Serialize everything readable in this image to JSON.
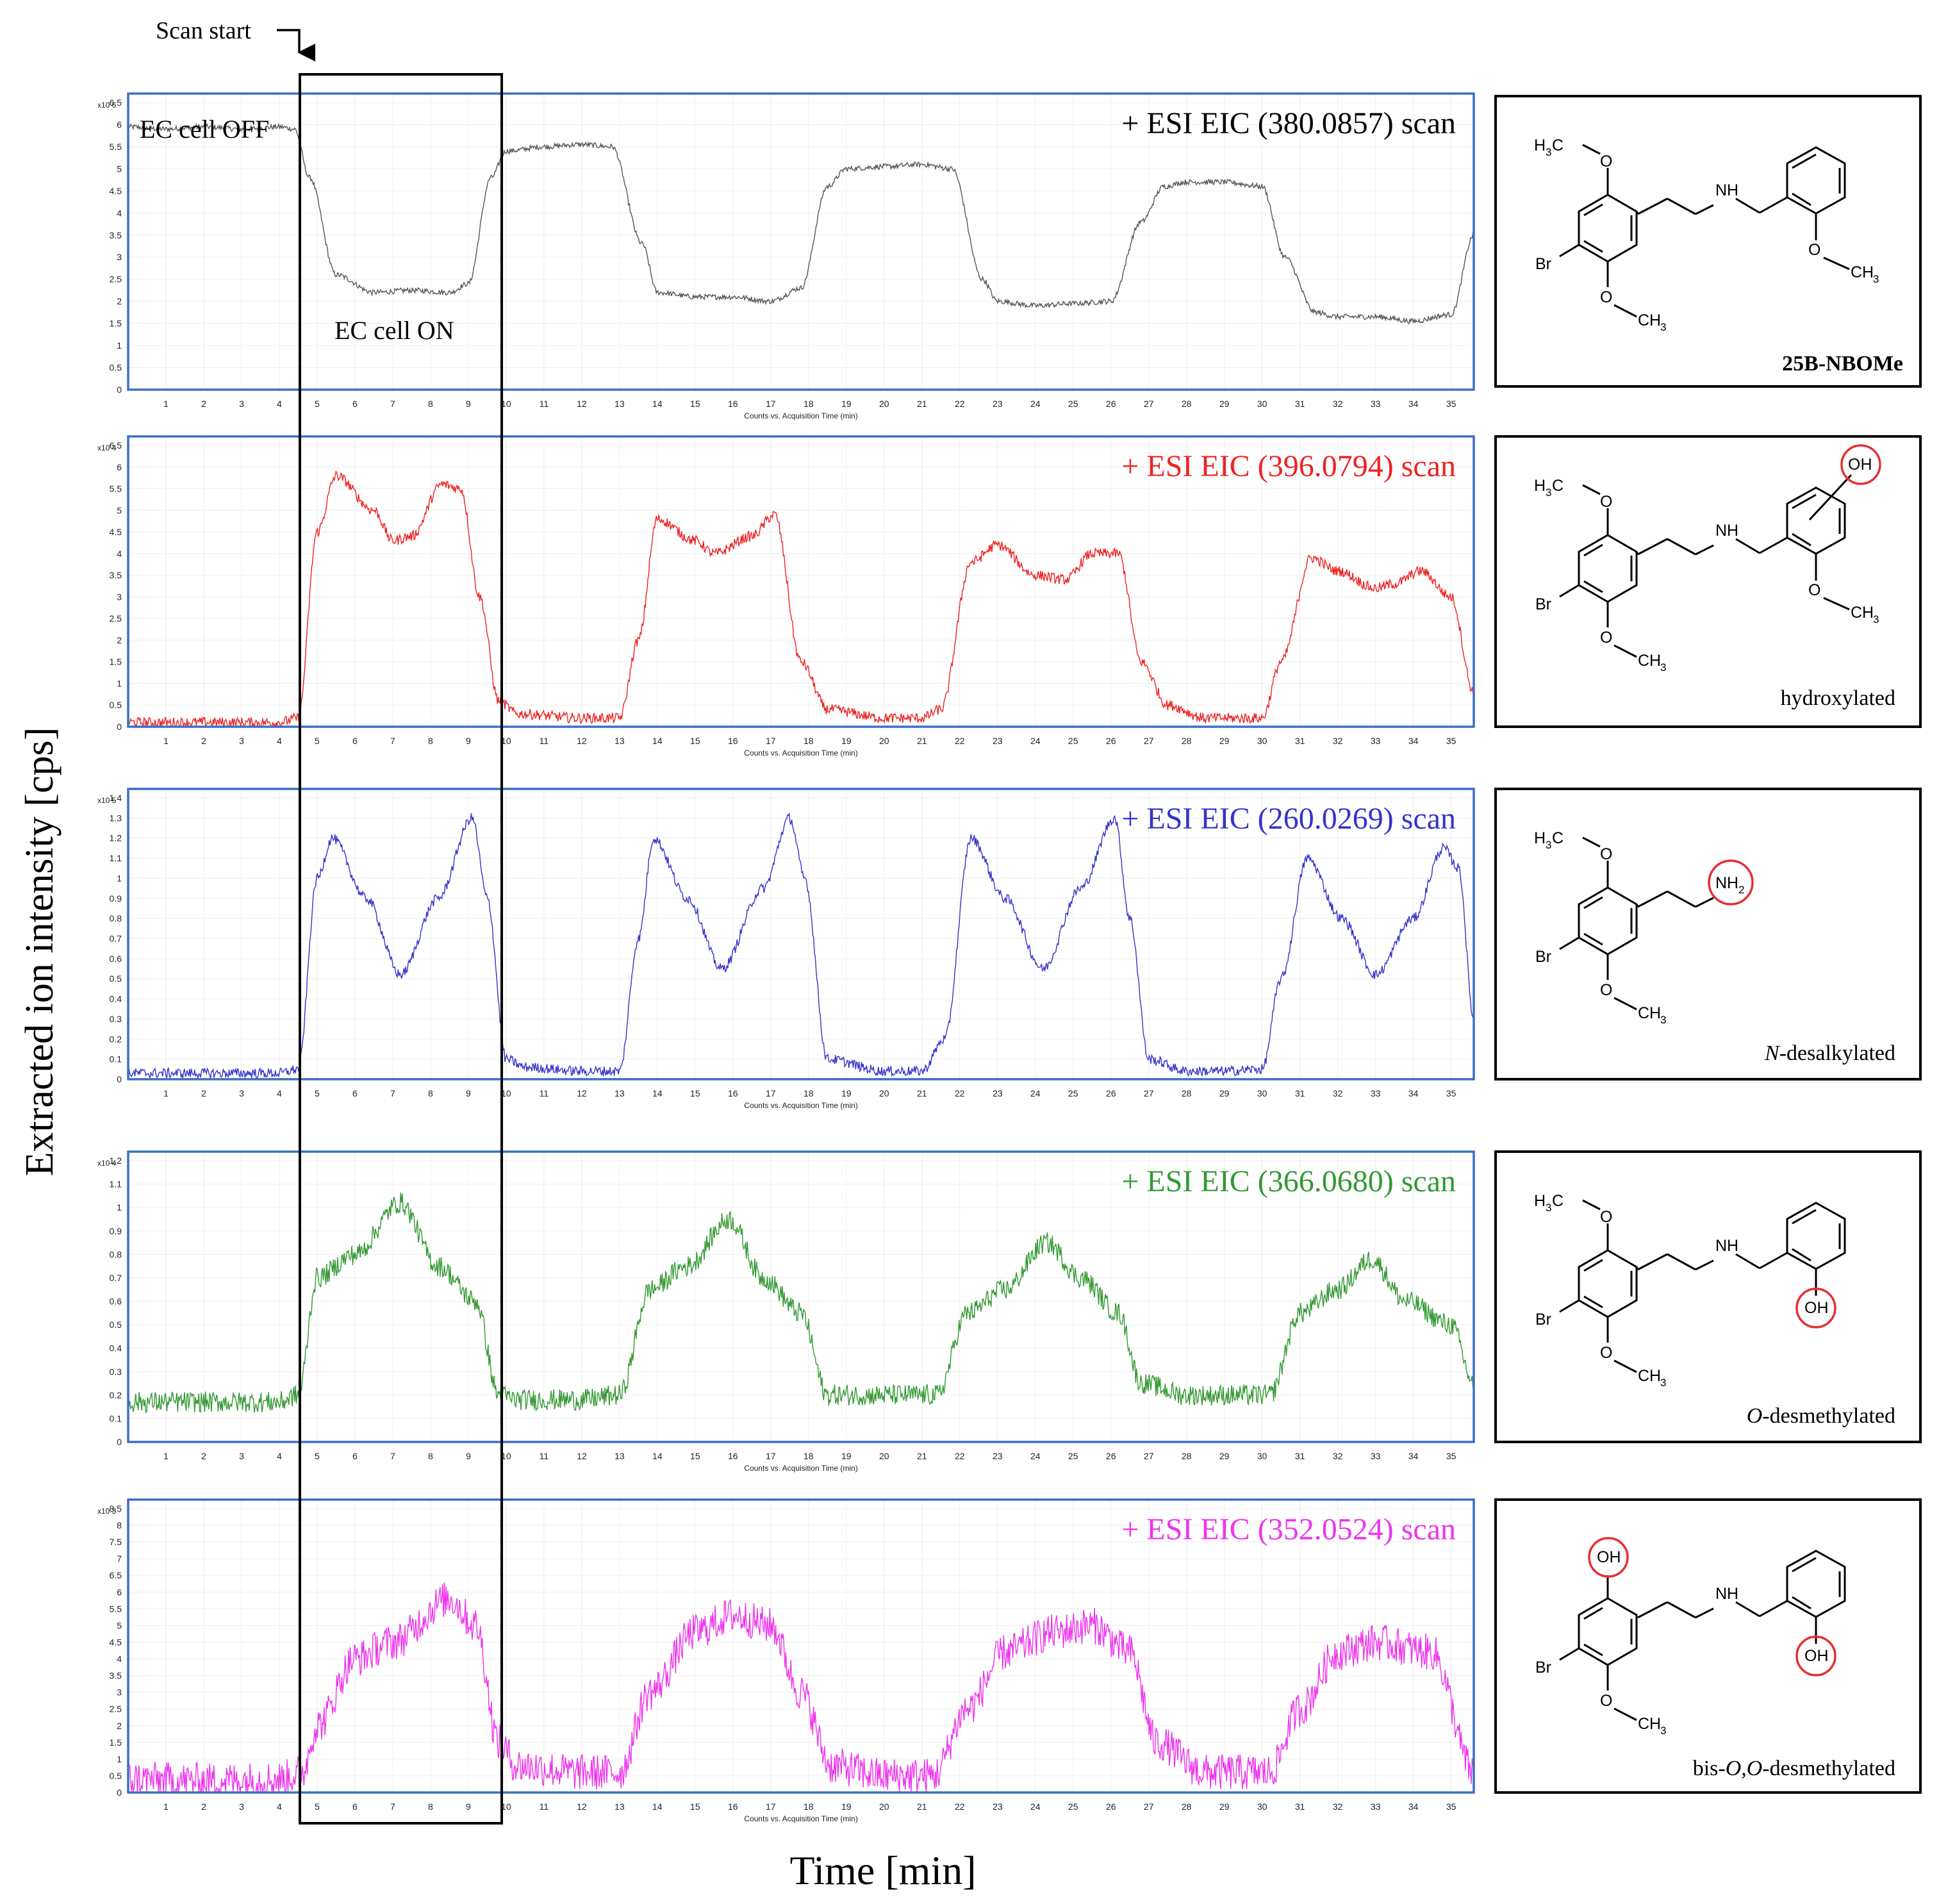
{
  "figure": {
    "y_axis_label": "Extracted ion intensity [cps]",
    "x_axis_label": "Time [min]",
    "scan_start_label": "Scan start",
    "ec_off_label": "EC cell OFF",
    "ec_on_label": "EC cell ON",
    "panel_x_caption": "Counts vs. Acquisition Time (min)"
  },
  "chart_data": [
    {
      "type": "line",
      "title": "+ ESI EIC (380.0857) scan",
      "color": "#555555",
      "exponent_label": "x10 6",
      "xlabel": "Counts vs. Acquisition Time (min)",
      "ylim": [
        0,
        6.5
      ],
      "yticks": [
        "0",
        "0.5",
        "1",
        "1.5",
        "2",
        "2.5",
        "3",
        "3.5",
        "4",
        "4.5",
        "5",
        "5.5",
        "6",
        "6.5"
      ],
      "xticks": [
        "1",
        "2",
        "3",
        "4",
        "5",
        "6",
        "7",
        "8",
        "9",
        "10",
        "11",
        "12",
        "13",
        "14",
        "15",
        "16",
        "17",
        "18",
        "19",
        "20",
        "21",
        "22",
        "23",
        "24",
        "25",
        "26",
        "27",
        "28",
        "29",
        "30",
        "31",
        "32",
        "33",
        "34",
        "35"
      ],
      "noise": 0.06,
      "x": [
        0,
        1,
        2,
        3,
        4,
        4.4,
        4.8,
        5.5,
        6.5,
        7.5,
        8.5,
        9.0,
        9.6,
        10.0,
        11,
        12,
        12.8,
        13.6,
        14,
        15,
        16,
        17,
        17.8,
        18.5,
        19,
        20,
        21,
        21.8,
        22.6,
        23,
        24,
        25,
        26,
        26.8,
        27.4,
        28,
        29,
        30,
        30.6,
        31.4,
        32,
        33,
        34,
        35,
        35.6
      ],
      "y": [
        5.95,
        5.9,
        5.95,
        5.9,
        5.95,
        5.9,
        4.8,
        2.6,
        2.2,
        2.25,
        2.2,
        2.4,
        4.8,
        5.4,
        5.5,
        5.55,
        5.5,
        3.3,
        2.2,
        2.1,
        2.1,
        2.0,
        2.3,
        4.6,
        5.0,
        5.05,
        5.1,
        5.0,
        2.5,
        2.0,
        1.9,
        1.95,
        2.0,
        3.8,
        4.6,
        4.7,
        4.7,
        4.6,
        3.0,
        1.75,
        1.65,
        1.65,
        1.55,
        1.7,
        3.5
      ]
    },
    {
      "type": "line",
      "title": "+ ESI EIC (396.0794) scan",
      "color": "#ee2222",
      "exponent_label": "x10 4",
      "xlabel": "Counts vs. Acquisition Time (min)",
      "ylim": [
        0,
        6.5
      ],
      "yticks": [
        "0",
        "0.5",
        "1",
        "1.5",
        "2",
        "2.5",
        "3",
        "3.5",
        "4",
        "4.5",
        "5",
        "5.5",
        "6",
        "6.5"
      ],
      "xticks": [
        "1",
        "2",
        "3",
        "4",
        "5",
        "6",
        "7",
        "8",
        "9",
        "10",
        "11",
        "12",
        "13",
        "14",
        "15",
        "16",
        "17",
        "18",
        "19",
        "20",
        "21",
        "22",
        "23",
        "24",
        "25",
        "26",
        "27",
        "28",
        "29",
        "30",
        "31",
        "32",
        "33",
        "34",
        "35"
      ],
      "noise": 0.12,
      "x": [
        0,
        2,
        4,
        4.5,
        5.0,
        5.5,
        6.5,
        7.0,
        7.5,
        8.3,
        8.8,
        9.3,
        9.8,
        10.3,
        12,
        13,
        13.5,
        14,
        15,
        15.5,
        16.5,
        17.1,
        17.8,
        18.5,
        20,
        21,
        21.5,
        22.3,
        23,
        24,
        24.8,
        25.5,
        26.2,
        26.8,
        27.5,
        28.5,
        29.5,
        30,
        30.5,
        31.3,
        32,
        33,
        33.5,
        34.2,
        35,
        35.6
      ],
      "y": [
        0.1,
        0.1,
        0.1,
        0.2,
        4.5,
        5.8,
        5.0,
        4.3,
        4.4,
        5.6,
        5.5,
        3.0,
        0.6,
        0.3,
        0.2,
        0.2,
        2.0,
        4.8,
        4.3,
        4.0,
        4.4,
        4.9,
        1.5,
        0.4,
        0.2,
        0.2,
        0.4,
        3.8,
        4.2,
        3.5,
        3.4,
        4.0,
        4.0,
        1.5,
        0.5,
        0.2,
        0.2,
        0.2,
        1.5,
        3.9,
        3.6,
        3.2,
        3.3,
        3.6,
        3.0,
        0.8
      ]
    },
    {
      "type": "line",
      "title": "+ ESI EIC (260.0269) scan",
      "color": "#3333cc",
      "exponent_label": "x10 5",
      "xlabel": "Counts vs. Acquisition Time (min)",
      "ylim": [
        0,
        1.4
      ],
      "yticks": [
        "0",
        "0.1",
        "0.2",
        "0.3",
        "0.4",
        "0.5",
        "0.6",
        "0.7",
        "0.8",
        "0.9",
        "1",
        "1.1",
        "1.2",
        "1.3",
        "1.4"
      ],
      "xticks": [
        "1",
        "2",
        "3",
        "4",
        "5",
        "6",
        "7",
        "8",
        "9",
        "10",
        "11",
        "12",
        "13",
        "14",
        "15",
        "16",
        "17",
        "18",
        "19",
        "20",
        "21",
        "22",
        "23",
        "24",
        "25",
        "26",
        "27",
        "28",
        "29",
        "30",
        "31",
        "32",
        "33",
        "34",
        "35"
      ],
      "noise": 0.025,
      "x": [
        0,
        2,
        4,
        4.5,
        5.0,
        5.4,
        6.3,
        7.2,
        8.2,
        9.1,
        9.5,
        10.0,
        10.5,
        12,
        13,
        13.5,
        13.9,
        14.8,
        15.7,
        16.8,
        17.5,
        17.9,
        18.5,
        20,
        21,
        21.6,
        22.3,
        23.2,
        24.2,
        25.2,
        26.1,
        26.5,
        27,
        28,
        29,
        30,
        30.5,
        31.2,
        32.1,
        33.0,
        34.0,
        34.8,
        35.2,
        35.6
      ],
      "y": [
        0.03,
        0.03,
        0.03,
        0.05,
        1.0,
        1.2,
        0.9,
        0.52,
        0.9,
        1.3,
        0.9,
        0.1,
        0.06,
        0.04,
        0.04,
        0.7,
        1.2,
        0.9,
        0.55,
        0.95,
        1.3,
        1.0,
        0.1,
        0.04,
        0.04,
        0.2,
        1.2,
        0.9,
        0.55,
        0.95,
        1.3,
        0.8,
        0.1,
        0.04,
        0.04,
        0.05,
        0.5,
        1.1,
        0.8,
        0.52,
        0.8,
        1.15,
        1.05,
        0.3
      ]
    },
    {
      "type": "line",
      "title": "+ ESI EIC (366.0680) scan",
      "color": "#339933",
      "exponent_label": "x10 4",
      "xlabel": "Counts vs. Acquisition Time (min)",
      "ylim": [
        0,
        1.2
      ],
      "yticks": [
        "0",
        "0.1",
        "0.2",
        "0.3",
        "0.4",
        "0.5",
        "0.6",
        "0.7",
        "0.8",
        "0.9",
        "1",
        "1.1",
        "1.2"
      ],
      "xticks": [
        "1",
        "2",
        "3",
        "4",
        "5",
        "6",
        "7",
        "8",
        "9",
        "10",
        "11",
        "12",
        "13",
        "14",
        "15",
        "16",
        "17",
        "18",
        "19",
        "20",
        "21",
        "22",
        "23",
        "24",
        "25",
        "26",
        "27",
        "28",
        "29",
        "30",
        "31",
        "32",
        "33",
        "34",
        "35"
      ],
      "noise": 0.045,
      "x": [
        0,
        2,
        4,
        4.5,
        5.0,
        6.0,
        7.2,
        8.2,
        9.2,
        9.8,
        10.3,
        12,
        13.0,
        13.8,
        14.8,
        15.9,
        16.8,
        17.8,
        18.5,
        20,
        21.4,
        22.2,
        23.2,
        24.3,
        25.2,
        26.2,
        26.8,
        28,
        29.5,
        30.2,
        31.0,
        32.0,
        32.9,
        33.8,
        35.0,
        35.6
      ],
      "y": [
        0.17,
        0.17,
        0.17,
        0.2,
        0.7,
        0.8,
        1.02,
        0.75,
        0.6,
        0.2,
        0.18,
        0.18,
        0.2,
        0.65,
        0.75,
        0.95,
        0.7,
        0.55,
        0.2,
        0.2,
        0.2,
        0.55,
        0.65,
        0.85,
        0.7,
        0.55,
        0.25,
        0.2,
        0.2,
        0.2,
        0.55,
        0.65,
        0.78,
        0.6,
        0.5,
        0.25
      ]
    },
    {
      "type": "line",
      "title": "+ ESI EIC (352.0524) scan",
      "color": "#ee33ee",
      "exponent_label": "x10 3",
      "xlabel": "Counts vs. Acquisition Time (min)",
      "ylim": [
        0,
        8.5
      ],
      "yticks": [
        "0",
        "0.5",
        "1",
        "1.5",
        "2",
        "2.5",
        "3",
        "3.5",
        "4",
        "4.5",
        "5",
        "5.5",
        "6",
        "6.5",
        "7",
        "7.5",
        "8",
        "8.5"
      ],
      "xticks": [
        "1",
        "2",
        "3",
        "4",
        "5",
        "6",
        "7",
        "8",
        "9",
        "10",
        "11",
        "12",
        "13",
        "14",
        "15",
        "16",
        "17",
        "18",
        "19",
        "20",
        "21",
        "22",
        "23",
        "24",
        "25",
        "26",
        "27",
        "28",
        "29",
        "30",
        "31",
        "32",
        "33",
        "34",
        "35"
      ],
      "noise": 0.55,
      "x": [
        0,
        2,
        4,
        4.6,
        5.0,
        6.0,
        7.0,
        8.5,
        9.2,
        9.8,
        10.3,
        12,
        13.0,
        13.8,
        15.0,
        16.0,
        17.0,
        17.8,
        18.6,
        20,
        21.3,
        22.2,
        23.2,
        24.5,
        25.5,
        26.5,
        27.2,
        28.5,
        29.5,
        30.2,
        31.0,
        32.0,
        33.0,
        34.5,
        35.6
      ],
      "y": [
        0.4,
        0.35,
        0.4,
        0.6,
        2.0,
        4.0,
        4.5,
        5.8,
        5.0,
        1.5,
        0.8,
        0.6,
        0.6,
        3.0,
        4.8,
        5.3,
        5.0,
        3.0,
        0.8,
        0.5,
        0.5,
        2.5,
        4.2,
        4.8,
        5.0,
        4.2,
        1.5,
        0.6,
        0.6,
        0.6,
        2.5,
        4.2,
        4.5,
        4.2,
        0.6
      ]
    }
  ],
  "structures": [
    {
      "label": "25B-NBOMe"
    },
    {
      "label_parts": [
        "hydroxylated"
      ]
    },
    {
      "label_parts": [
        "N",
        "-desalkylated"
      ]
    },
    {
      "label_parts": [
        "O",
        "-desmethylated"
      ]
    },
    {
      "label_parts": [
        "bis-",
        "O,O",
        "-desmethylated"
      ]
    }
  ],
  "chem_labels": {
    "H3C_main": "H",
    "H3C_sub": "3",
    "H3C_end": "C",
    "O": "O",
    "NH": "NH",
    "NH2_main": "NH",
    "NH2_sub": "2",
    "Br": "Br",
    "OH": "OH",
    "CH3_main": "CH",
    "CH3_sub": "3"
  },
  "colors": {
    "panel_border": "#3a6fc4",
    "highlight": "#e53030",
    "text": "#000000"
  }
}
